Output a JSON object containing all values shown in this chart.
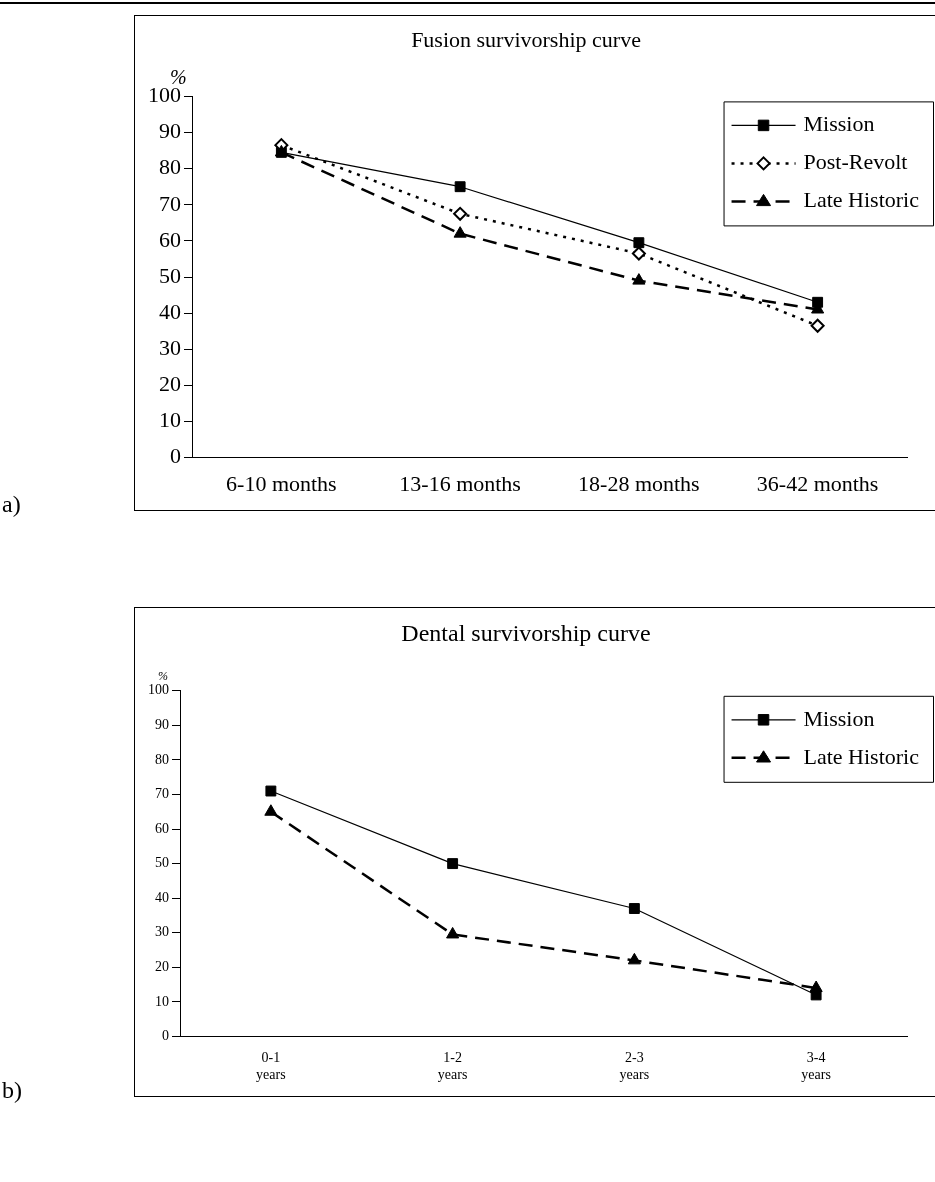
{
  "chart_data": [
    {
      "type": "line",
      "title": "Fusion survivorship curve",
      "ylabel": "%",
      "categories": [
        "6-10 months",
        "13-16 months",
        "18-28 months",
        "36-42 months"
      ],
      "series": [
        {
          "name": "Mission",
          "color": "#000000",
          "values": [
            84.5,
            75,
            59.5,
            43
          ],
          "marker": "square",
          "line_style": "solid"
        },
        {
          "name": "Post-Revolt",
          "color": "#000000",
          "values": [
            86.5,
            67.5,
            56.5,
            36.5
          ],
          "marker": "diamond",
          "line_style": "dotted"
        },
        {
          "name": "Late Historic",
          "color": "#000000",
          "values": [
            84.5,
            62,
            49,
            41
          ],
          "marker": "triangle",
          "line_style": "dashed"
        }
      ],
      "ylim": [
        0,
        100
      ],
      "yticks": [
        0,
        10,
        20,
        30,
        40,
        50,
        60,
        70,
        80,
        90,
        100
      ],
      "grid": false,
      "legend": "top right",
      "annotations": [
        "a)"
      ]
    },
    {
      "type": "line",
      "title": "Dental survivorship curve",
      "ylabel": "%",
      "categories": [
        "0-1\nyears",
        "1-2\nyears",
        "2-3\nyears",
        "3-4\nyears"
      ],
      "series": [
        {
          "name": "Mission",
          "color": "#000000",
          "values": [
            71,
            50,
            37,
            12
          ],
          "marker": "square",
          "line_style": "solid"
        },
        {
          "name": "Late Historic",
          "color": "#000000",
          "values": [
            65,
            29.5,
            22,
            14
          ],
          "marker": "triangle",
          "line_style": "dashed"
        }
      ],
      "ylim": [
        0,
        100
      ],
      "yticks": [
        0,
        10,
        20,
        30,
        40,
        50,
        60,
        70,
        80,
        90,
        100
      ],
      "grid": false,
      "legend": "top right",
      "annotations": [
        "b)"
      ]
    }
  ]
}
